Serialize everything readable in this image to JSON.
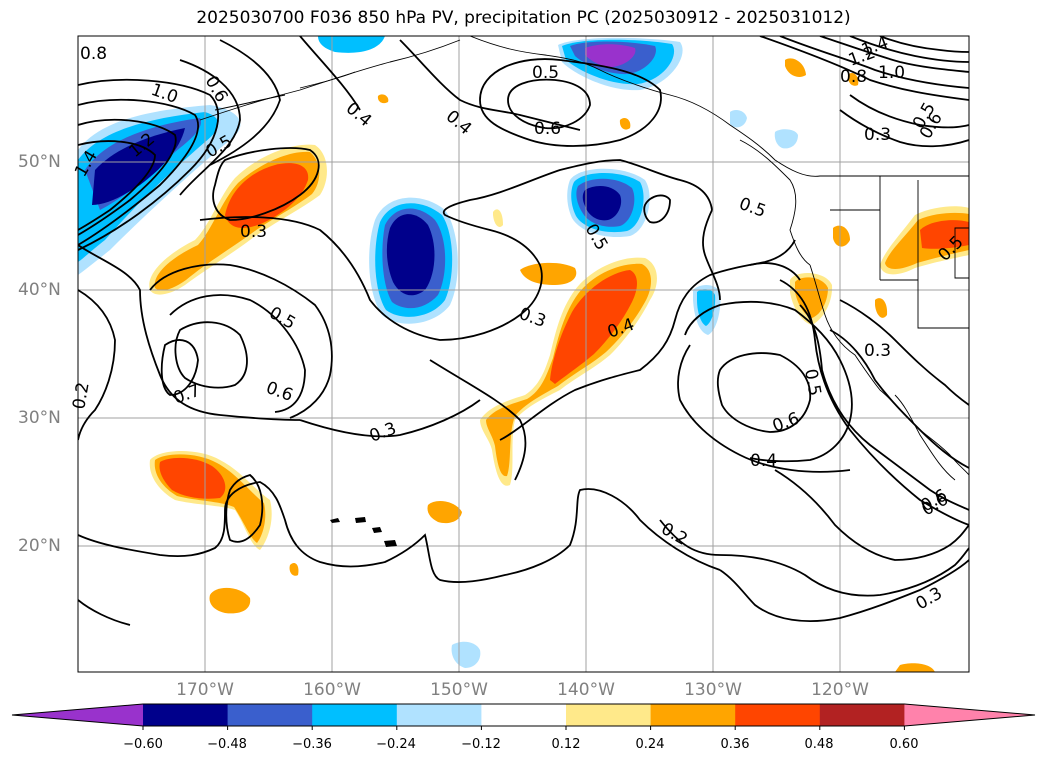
{
  "title": "2025030700 F036 850 hPa PV, precipitation PC (2025030912 - 2025031012)",
  "lat_labels": [
    "50°N",
    "40°N",
    "30°N",
    "20°N"
  ],
  "lon_labels": [
    "170°W",
    "160°W",
    "150°W",
    "140°W",
    "130°W",
    "120°W"
  ],
  "colorbar": {
    "ticks": [
      "−0.60",
      "−0.48",
      "−0.36",
      "−0.24",
      "−0.12",
      "0.12",
      "0.24",
      "0.36",
      "0.48",
      "0.60"
    ],
    "colors": [
      "#9932cc",
      "#00008b",
      "#3a5fcd",
      "#00bfff",
      "#b0e2ff",
      "#ffffff",
      "#ffe98a",
      "#ffa500",
      "#ff4500",
      "#b22222",
      "#ff82ab"
    ]
  },
  "contour_labels": [
    "0.8",
    "1.0",
    "1.4",
    "1.2",
    "0.6",
    "0.4",
    "0.5",
    "0.5",
    "0.3",
    "0.4",
    "0.6",
    "0.5",
    "0.6",
    "0.5",
    "1.4",
    "1.2",
    "1.0",
    "0.8",
    "0.3",
    "0.5",
    "0.6",
    "0.5",
    "0.5",
    "0.3",
    "0.4",
    "0.3",
    "0.6",
    "0.7",
    "0.5",
    "0.3",
    "0.6",
    "0.4",
    "0.2",
    "0.6",
    "0.2",
    "0.3"
  ]
}
